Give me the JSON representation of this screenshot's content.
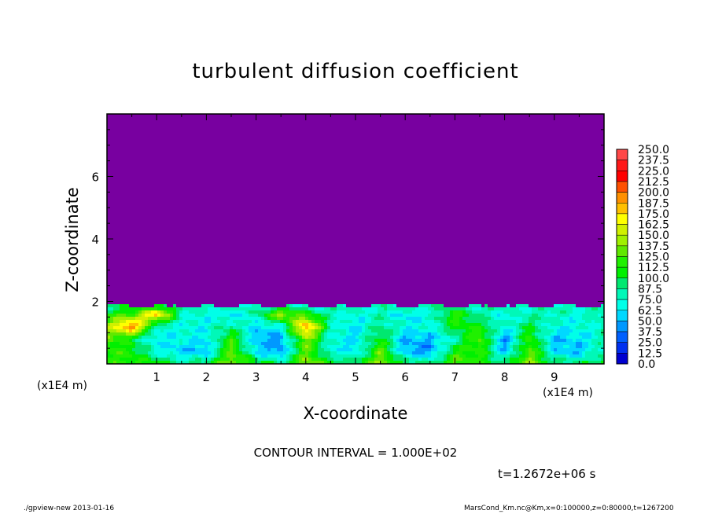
{
  "chart_data": {
    "type": "heatmap",
    "title": "turbulent diffusion coefficient",
    "xlabel": "X-coordinate",
    "ylabel": "Z-coordinate",
    "x_unit_label": "(x1E4 m)",
    "xlim": [
      0,
      10
    ],
    "ylim": [
      0,
      8
    ],
    "x_ticks": [
      "1",
      "2",
      "3",
      "4",
      "5",
      "6",
      "7",
      "8",
      "9"
    ],
    "y_ticks": [
      "2",
      "4",
      "6"
    ],
    "colorbar": {
      "levels": [
        "250.0",
        "237.5",
        "225.0",
        "212.5",
        "200.0",
        "187.5",
        "175.0",
        "162.5",
        "150.0",
        "137.5",
        "125.0",
        "112.5",
        "100.0",
        "87.5",
        "75.0",
        "62.5",
        "50.0",
        "37.5",
        "25.0",
        "12.5",
        "0.0"
      ],
      "colors": [
        "#ff8888",
        "#ff4848",
        "#ff1818",
        "#ff0000",
        "#ff5000",
        "#ff9000",
        "#ffc000",
        "#ffff00",
        "#d0f000",
        "#a0f000",
        "#60e800",
        "#20f000",
        "#00f000",
        "#00e870",
        "#00f8b8",
        "#00ffe8",
        "#00d8ff",
        "#0098ff",
        "#0060ff",
        "#0030f0",
        "#0000d0",
        "#1818a0",
        "#7800a0"
      ]
    },
    "field": {
      "x": [
        0,
        0.5,
        1,
        1.5,
        2,
        2.5,
        3,
        3.5,
        4,
        4.5,
        5,
        5.5,
        6,
        6.5,
        7,
        7.5,
        8,
        8.5,
        9,
        9.5,
        10
      ],
      "z": [
        0,
        0.4,
        0.8,
        1.2,
        1.6,
        1.8
      ],
      "values": [
        [
          110,
          120,
          110,
          90,
          100,
          140,
          110,
          90,
          140,
          110,
          100,
          140,
          100,
          90,
          130,
          110,
          100,
          140,
          100,
          90,
          110
        ],
        [
          120,
          110,
          70,
          55,
          50,
          130,
          60,
          40,
          130,
          70,
          60,
          130,
          50,
          40,
          110,
          120,
          50,
          130,
          60,
          50,
          90
        ],
        [
          130,
          100,
          60,
          70,
          60,
          120,
          50,
          45,
          140,
          70,
          60,
          110,
          50,
          50,
          80,
          130,
          40,
          120,
          50,
          60,
          80
        ],
        [
          140,
          210,
          80,
          70,
          70,
          90,
          60,
          70,
          200,
          80,
          60,
          90,
          70,
          70,
          110,
          110,
          70,
          100,
          70,
          70,
          80
        ],
        [
          110,
          120,
          190,
          80,
          70,
          60,
          80,
          150,
          110,
          80,
          70,
          80,
          60,
          70,
          120,
          80,
          70,
          80,
          80,
          70,
          90
        ],
        [
          90,
          100,
          110,
          80,
          80,
          80,
          80,
          90,
          80,
          80,
          80,
          80,
          80,
          80,
          90,
          80,
          80,
          80,
          80,
          80,
          80
        ]
      ],
      "top_of_turbulent_layer": 1.85,
      "background_value": 0
    },
    "contour_interval": "CONTOUR INTERVAL = 1.000E+02",
    "time": "t=1.2672e+06 s"
  },
  "footer": {
    "left": "./gpview-new  2013-01-16",
    "right": "MarsCond_Km.nc@Km,x=0:100000,z=0:80000,t=1267200"
  }
}
